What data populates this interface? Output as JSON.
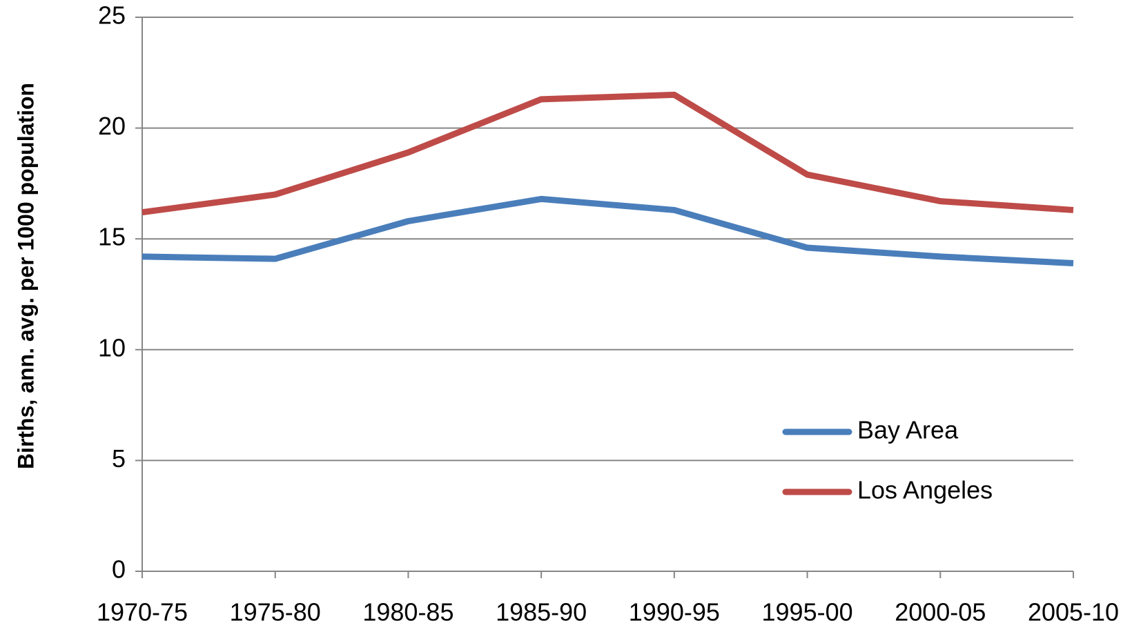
{
  "chart_data": {
    "type": "line",
    "y_label": "Births, ann. avg. per 1000 population",
    "categories": [
      "1970-75",
      "1975-80",
      "1980-85",
      "1985-90",
      "1990-95",
      "1995-00",
      "2000-05",
      "2005-10"
    ],
    "series": [
      {
        "name": "Bay Area",
        "color": "#4a7ebb",
        "values": [
          14.2,
          14.1,
          15.8,
          16.8,
          16.3,
          14.6,
          14.2,
          13.9
        ]
      },
      {
        "name": "Los Angeles",
        "color": "#be4b48",
        "values": [
          16.2,
          17.0,
          18.9,
          21.3,
          21.5,
          17.9,
          16.7,
          16.3
        ]
      }
    ],
    "ylim": [
      0,
      25
    ],
    "yticks": [
      0,
      5,
      10,
      15,
      20,
      25
    ],
    "grid": true
  }
}
